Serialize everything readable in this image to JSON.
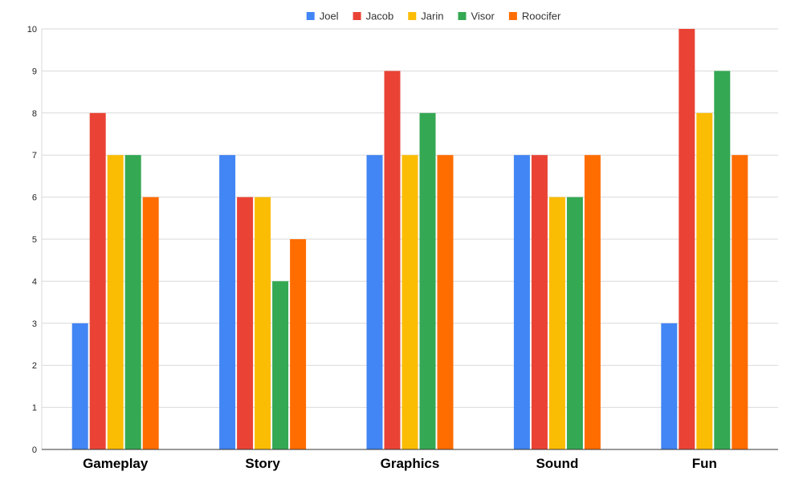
{
  "chart_data": {
    "type": "bar",
    "title": "",
    "xlabel": "",
    "ylabel": "",
    "categories": [
      "Gameplay",
      "Story",
      "Graphics",
      "Sound",
      "Fun"
    ],
    "series": [
      {
        "name": "Joel",
        "color": "#4285F4",
        "values": [
          3,
          7,
          7,
          7,
          3
        ]
      },
      {
        "name": "Jacob",
        "color": "#EA4335",
        "values": [
          8,
          6,
          9,
          7,
          10
        ]
      },
      {
        "name": "Jarin",
        "color": "#FBBC04",
        "values": [
          7,
          6,
          7,
          6,
          8
        ]
      },
      {
        "name": "Visor",
        "color": "#34A853",
        "values": [
          7,
          4,
          8,
          6,
          9
        ]
      },
      {
        "name": "Roocifer",
        "color": "#FF6D01",
        "values": [
          6,
          5,
          7,
          7,
          7
        ]
      }
    ],
    "ylim": [
      0,
      10
    ],
    "yticks": [
      0,
      1,
      2,
      3,
      4,
      5,
      6,
      7,
      8,
      9,
      10
    ],
    "grid": true,
    "legend_position": "top-center"
  }
}
